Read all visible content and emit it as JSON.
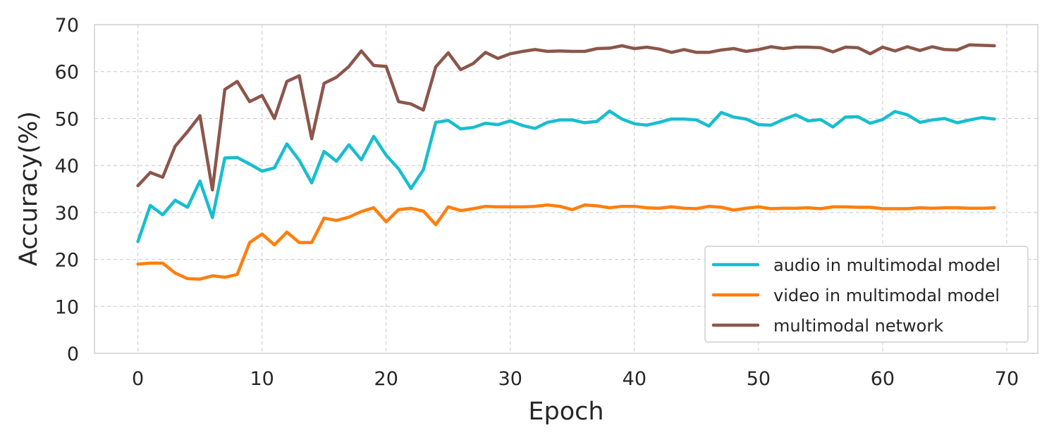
{
  "chart_data": {
    "type": "line",
    "xlabel": "Epoch",
    "ylabel": "Accuracy(%)",
    "xlim": [
      -3.5,
      72.5
    ],
    "ylim": [
      0,
      70
    ],
    "xticks": [
      "0",
      "10",
      "20",
      "30",
      "40",
      "50",
      "60",
      "70"
    ],
    "yticks": [
      "0",
      "10",
      "20",
      "30",
      "40",
      "50",
      "60",
      "70"
    ],
    "grid": true,
    "legend_position": "bottom-right",
    "x": [
      0,
      1,
      2,
      3,
      4,
      5,
      6,
      7,
      8,
      9,
      10,
      11,
      12,
      13,
      14,
      15,
      16,
      17,
      18,
      19,
      20,
      21,
      22,
      23,
      24,
      25,
      26,
      27,
      28,
      29,
      30,
      31,
      32,
      33,
      34,
      35,
      36,
      37,
      38,
      39,
      40,
      41,
      42,
      43,
      44,
      45,
      46,
      47,
      48,
      49,
      50,
      51,
      52,
      53,
      54,
      55,
      56,
      57,
      58,
      59,
      60,
      61,
      62,
      63,
      64,
      65,
      66,
      67,
      68,
      69
    ],
    "series": [
      {
        "name": "audio in multimodal model",
        "color": "#17becf",
        "values": [
          23.8,
          31.5,
          29.5,
          32.6,
          31.1,
          36.7,
          28.9,
          41.6,
          41.7,
          40.3,
          38.8,
          39.5,
          44.6,
          41.1,
          36.3,
          43.0,
          40.9,
          44.4,
          41.2,
          46.2,
          42.2,
          39.3,
          35.1,
          39.1,
          49.2,
          49.6,
          47.8,
          48.1,
          49.0,
          48.7,
          49.5,
          48.5,
          47.9,
          49.2,
          49.7,
          49.7,
          49.1,
          49.4,
          51.6,
          49.9,
          48.9,
          48.6,
          49.2,
          49.9,
          49.9,
          49.7,
          48.4,
          51.3,
          50.3,
          49.9,
          48.7,
          48.6,
          49.8,
          50.8,
          49.5,
          49.8,
          48.2,
          50.3,
          50.4,
          49.0,
          49.8,
          51.5,
          50.8,
          49.2,
          49.7,
          50.0,
          49.1,
          49.7,
          50.2,
          49.9
        ]
      },
      {
        "name": "video in multimodal model",
        "color": "#ff7f0e",
        "values": [
          19.0,
          19.2,
          19.2,
          17.1,
          15.9,
          15.8,
          16.5,
          16.2,
          16.8,
          23.6,
          25.4,
          23.1,
          25.8,
          23.6,
          23.6,
          28.8,
          28.3,
          29.0,
          30.2,
          31.0,
          28.0,
          30.6,
          30.9,
          30.3,
          27.4,
          31.2,
          30.4,
          30.8,
          31.3,
          31.2,
          31.2,
          31.2,
          31.3,
          31.6,
          31.3,
          30.6,
          31.6,
          31.4,
          31.0,
          31.3,
          31.3,
          31.0,
          30.9,
          31.2,
          30.9,
          30.8,
          31.3,
          31.1,
          30.5,
          30.9,
          31.2,
          30.8,
          30.9,
          30.9,
          31.0,
          30.8,
          31.2,
          31.2,
          31.1,
          31.1,
          30.8,
          30.8,
          30.8,
          31.0,
          30.9,
          31.0,
          31.0,
          30.9,
          30.9,
          31.0
        ]
      },
      {
        "name": "multimodal network",
        "color": "#8c564b",
        "values": [
          35.7,
          38.5,
          37.5,
          44.1,
          47.2,
          50.6,
          34.8,
          56.2,
          57.9,
          53.6,
          54.9,
          50.0,
          57.9,
          59.1,
          45.7,
          57.5,
          58.8,
          61.1,
          64.4,
          61.3,
          61.1,
          53.6,
          53.1,
          51.8,
          61.0,
          64.0,
          60.4,
          61.7,
          64.1,
          62.8,
          63.8,
          64.3,
          64.7,
          64.3,
          64.4,
          64.3,
          64.3,
          64.9,
          65.0,
          65.5,
          64.9,
          65.2,
          64.8,
          64.1,
          64.7,
          64.1,
          64.1,
          64.6,
          64.9,
          64.3,
          64.7,
          65.3,
          64.9,
          65.2,
          65.2,
          65.1,
          64.2,
          65.2,
          65.1,
          63.8,
          65.2,
          64.4,
          65.3,
          64.5,
          65.3,
          64.7,
          64.6,
          65.7,
          65.6,
          65.5
        ]
      }
    ]
  }
}
